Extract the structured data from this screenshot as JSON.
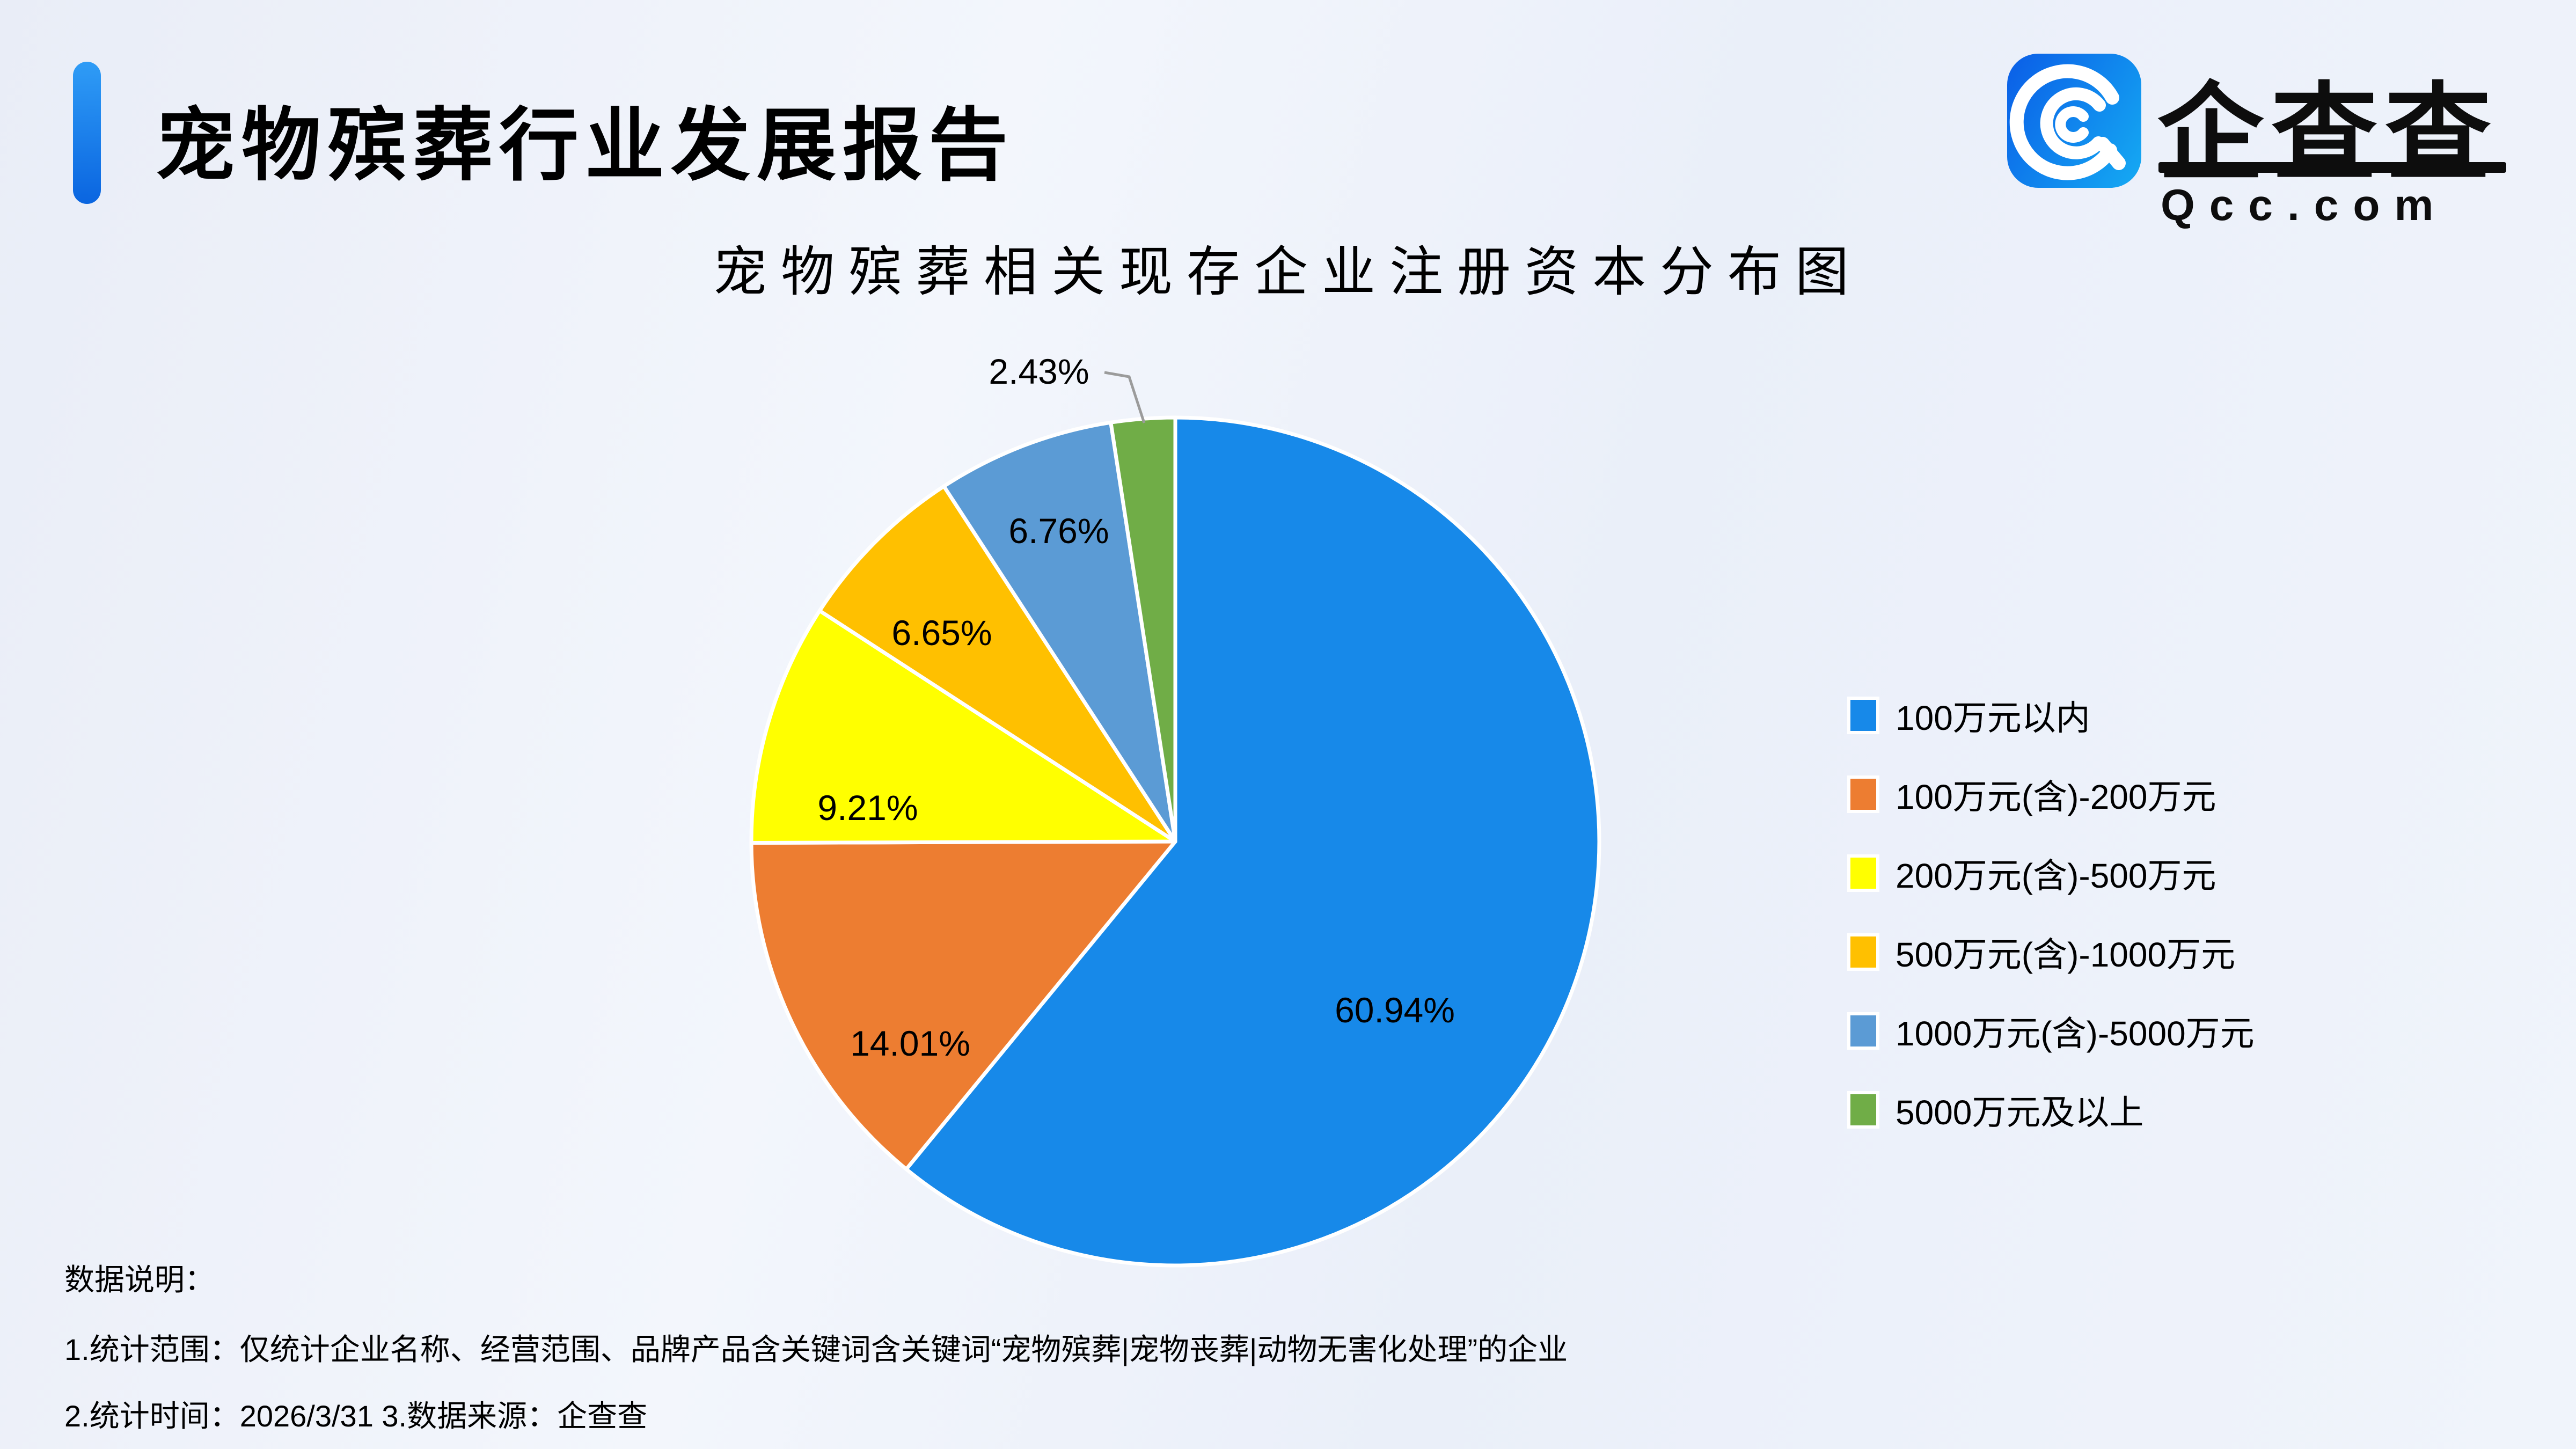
{
  "header": {
    "title": "宠物殡葬行业发展报告"
  },
  "logo": {
    "brand": "企查查",
    "domain": "Qcc.com",
    "icon": "qcc-spiral-q-icon",
    "icon_gradient": [
      "#0b63e8",
      "#14a5f2"
    ]
  },
  "chart_data": {
    "type": "pie",
    "title": "宠物殡葬相关现存企业注册资本分布图",
    "unit": "percent",
    "start_angle": "12-oclock",
    "direction": "clockwise",
    "legend_position": "right",
    "slice_border_color": "#ffffff",
    "leader_line_color": "#9b9b9b",
    "items": [
      {
        "label": "100万元以内",
        "value": 60.94,
        "pct_label": "60.94%",
        "color": "#1789E9"
      },
      {
        "label": "100万元(含)-200万元",
        "value": 14.01,
        "pct_label": "14.01%",
        "color": "#ED7D31"
      },
      {
        "label": "200万元(含)-500万元",
        "value": 9.21,
        "pct_label": "9.21%",
        "color": "#FFFF00"
      },
      {
        "label": "500万元(含)-1000万元",
        "value": 6.65,
        "pct_label": "6.65%",
        "color": "#FFC000"
      },
      {
        "label": "1000万元(含)-5000万元",
        "value": 6.76,
        "pct_label": "6.76%",
        "color": "#5B9BD5"
      },
      {
        "label": "5000万元及以上",
        "value": 2.43,
        "pct_label": "2.43%",
        "color": "#70AD47"
      }
    ]
  },
  "notes": {
    "heading": "数据说明：",
    "line1": "1.统计范围：仅统计企业名称、经营范围、品牌产品含关键词含关键词“宠物殡葬|宠物丧葬|动物无害化处理”的企业",
    "line2": "2.统计时间：2026/3/31  3.数据来源：企查查"
  }
}
